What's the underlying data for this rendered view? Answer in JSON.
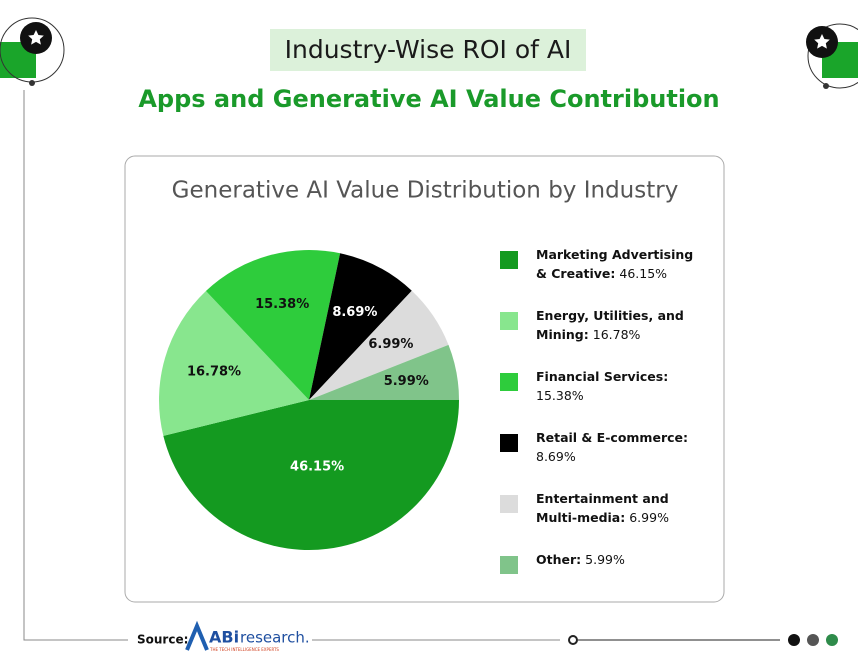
{
  "header": {
    "title": "Industry-Wise ROI of AI",
    "subtitle": "Apps and Generative AI Value Contribution"
  },
  "chart_data": {
    "type": "pie",
    "title": "Generative AI Value Distribution by Industry",
    "categories": [
      "Marketing Advertising & Creative:",
      "Energy, Utilities, and Mining:",
      "Financial Services:",
      "Retail & E-commerce:",
      "Entertainment and Multi-media:",
      "Other:"
    ],
    "values": [
      46.15,
      16.78,
      15.38,
      8.69,
      6.99,
      5.99
    ],
    "value_labels": [
      "46.15%",
      "16.78%",
      "15.38%",
      "8.69%",
      "6.99%",
      "5.99%"
    ],
    "colors": [
      "#149a20",
      "#88e68e",
      "#2ecc3c",
      "#000000",
      "#dcdcdc",
      "#80c48a"
    ],
    "label_colors": [
      "#ffffff",
      "#111111",
      "#111111",
      "#ffffff",
      "#111111",
      "#111111"
    ]
  },
  "footer": {
    "source": "Source:",
    "logo_brand": "ABi",
    "logo_name": "research.",
    "logo_tagline": "THE TECH INTELLIGENCE EXPERTS"
  }
}
